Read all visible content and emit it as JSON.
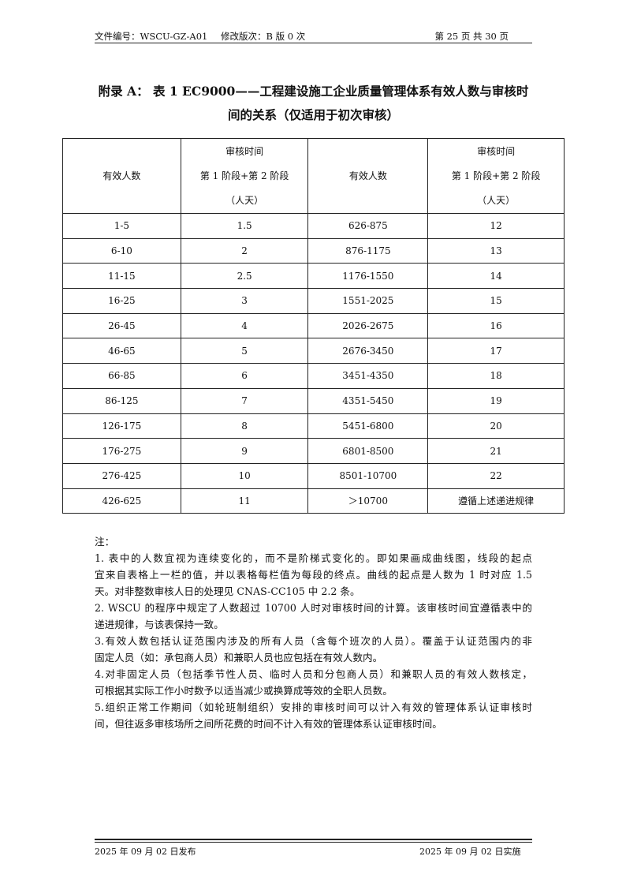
{
  "header": {
    "doc_no": "文件编号：WSCU-GZ-A01",
    "revision": "修改版次：B 版 0 次",
    "page": "第 25 页 共 30 页"
  },
  "title": {
    "line1": "附录 A：  表 1  EC9000——工程建设施工企业质量管理体系有效人数与审核时",
    "line2": "间的关系（仅适用于初次审核）"
  },
  "table": {
    "headers": {
      "col1": "有效人数",
      "col2": [
        "审核时间",
        "第 1 阶段+第 2 阶段",
        "（人天）"
      ],
      "col3": "有效人数",
      "col4": [
        "审核时间",
        "第 1 阶段+第 2 阶段",
        "（人天）"
      ]
    },
    "rows": [
      [
        "1-5",
        "1.5",
        "626-875",
        "12"
      ],
      [
        "6-10",
        "2",
        "876-1175",
        "13"
      ],
      [
        "11-15",
        "2.5",
        "1176-1550",
        "14"
      ],
      [
        "16-25",
        "3",
        "1551-2025",
        "15"
      ],
      [
        "26-45",
        "4",
        "2026-2675",
        "16"
      ],
      [
        "46-65",
        "5",
        "2676-3450",
        "17"
      ],
      [
        "66-85",
        "6",
        "3451-4350",
        "18"
      ],
      [
        "86-125",
        "7",
        "4351-5450",
        "19"
      ],
      [
        "126-175",
        "8",
        "5451-6800",
        "20"
      ],
      [
        "176-275",
        "9",
        "6801-8500",
        "21"
      ],
      [
        "276-425",
        "10",
        "8501-10700",
        "22"
      ],
      [
        "426-625",
        "11",
        "＞10700",
        "遵循上述递进规律"
      ]
    ]
  },
  "notes": {
    "label": "注：",
    "items": [
      [
        "1. 表中的人数宜视为连续变化的，而不是阶梯式变化的。即如果画成曲线图，线段的起点",
        "宜来自表格上一栏的值，并以表格每栏值为每段的终点。曲线的起点是人数为 1 时对应 1.5",
        "天。对非整数审核人日的处理见 CNAS-CC105 中 2.2 条。"
      ],
      [
        "2. WSCU 的程序中规定了人数超过 10700 人时对审核时间的计算。该审核时间宜遵循表中的",
        "递进规律，与该表保持一致。"
      ],
      [
        "3.有效人数包括认证范围内涉及的所有人员（含每个班次的人员）。覆盖于认证范围内的非",
        "固定人员（如：承包商人员）和兼职人员也应包括在有效人数内。"
      ],
      [
        "4.对非固定人员（包括季节性人员、临时人员和分包商人员）和兼职人员的有效人数核定，",
        "可根据其实际工作小时数予以适当减少或换算成等效的全职人员数。"
      ],
      [
        "5.组织正常工作期间（如轮班制组织）安排的审核时间可以计入有效的管理体系认证审核时",
        "间，但往返多审核场所之间所花费的时间不计入有效的管理体系认证审核时间。"
      ]
    ]
  },
  "footer": {
    "issued": "2025 年 09 月 02 日发布",
    "effective": "2025 年 09 月 02 日实施"
  }
}
